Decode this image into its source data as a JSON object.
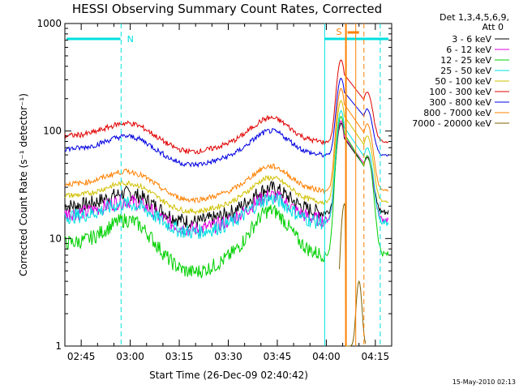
{
  "chart_data": {
    "type": "line",
    "title": "HESSI Observing Summary Count Rates, Corrected",
    "xlabel": "Start Time (26-Dec-09 02:40:42)",
    "ylabel": "Corrected Count Rate (s⁻¹ detector⁻¹)",
    "y_scale": "log",
    "ylim": [
      1,
      1000
    ],
    "xlim_minutes_after_0240": [
      0,
      100
    ],
    "x_tick_labels": [
      "02:45",
      "03:00",
      "03:15",
      "03:30",
      "03:45",
      "04:00",
      "04:15"
    ],
    "y_tick_labels": [
      "1",
      "10",
      "100",
      "1000"
    ],
    "legend_header": [
      "Det 1,3,4,5,6,9,",
      "Att 0"
    ],
    "legend_position": "right",
    "series": [
      {
        "name": "3 - 6 keV",
        "color": "#000000",
        "start": 20,
        "peak": 100
      },
      {
        "name": "6 - 12 keV",
        "color": "#e000e0",
        "start": 17,
        "peak": 110
      },
      {
        "name": "12 - 25 keV",
        "color": "#00d000",
        "start": 9,
        "peak": 130
      },
      {
        "name": "25 - 50 keV",
        "color": "#00e0e0",
        "start": 16,
        "peak": 140
      },
      {
        "name": "50 - 100 keV",
        "color": "#d0c000",
        "start": 25,
        "peak": 170
      },
      {
        "name": "100 - 300 keV",
        "color": "#e00000",
        "start": 90,
        "peak": 380
      },
      {
        "name": "300 - 800 keV",
        "color": "#0000e0",
        "start": 68,
        "peak": 250
      },
      {
        "name": "800 - 7000 keV",
        "color": "#ff8000",
        "start": 32,
        "peak": 220
      },
      {
        "name": "7000 - 20000 keV",
        "color": "#806000",
        "start": 1,
        "peak": 20
      }
    ],
    "markers": [
      {
        "label": "N",
        "color": "#00e0e0"
      },
      {
        "label": "S",
        "color": "#ff8000"
      }
    ],
    "footer_timestamp": "15-May-2010 02:13"
  }
}
